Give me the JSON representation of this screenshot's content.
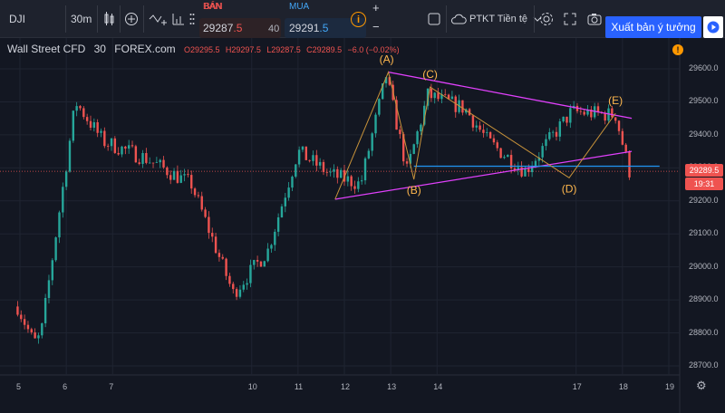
{
  "toolbar": {
    "symbol": "DJI",
    "interval": "30m",
    "sell_label": "BÁN",
    "sell_price_main": "29287",
    "sell_price_tail": ".5",
    "spread": "40",
    "buy_label": "MUA",
    "buy_price_main": "29291",
    "buy_price_tail": ".5",
    "plus": "+",
    "minus": "−",
    "info": "i",
    "layout_name": "PTKT Tiền tệ",
    "publish_label": "Xuất bản ý tưởng",
    "icons": [
      "candles-icon",
      "compare-icon",
      "indicators-icon",
      "templates-icon",
      "info-icon",
      "rectangle-icon",
      "cloud-icon",
      "chevron-down-icon",
      "gear-icon",
      "fullscreen-icon",
      "camera-icon",
      "play-icon"
    ]
  },
  "legend": {
    "title": "Wall Street CFD",
    "interval": "30",
    "source": "FOREX.com",
    "open": "O29295.5",
    "high": "H29297.5",
    "low": "L29287.5",
    "close": "C29289.5",
    "change": "−6.0 (−0.02%)"
  },
  "price_axis": [
    "29600.0",
    "29500.0",
    "29400.0",
    "29300.0",
    "29200.0",
    "29100.0",
    "29000.0",
    "28900.0",
    "28800.0",
    "28700.0"
  ],
  "time_axis": [
    "5",
    "6",
    "7",
    "10",
    "11",
    "12",
    "13",
    "14",
    "17",
    "18",
    "19"
  ],
  "current_price": "29289.5",
  "countdown": "19:31",
  "annotations": [
    "(A)",
    "(B)",
    "(C)",
    "(D)",
    "(E)"
  ],
  "colors": {
    "up": "#26a69a",
    "down": "#ef5350",
    "triangle": "#e040fb",
    "wave": "#c7923a",
    "label": "#ffb74d",
    "hline": "#2196f3"
  },
  "chart_data": {
    "type": "candlestick",
    "title": "Wall Street CFD, 30, FOREX.com",
    "ylim": [
      28660,
      29680
    ],
    "path_days": [
      4.95,
      5.3,
      5.45,
      6.2,
      6.8,
      7.7,
      8.7,
      9.6,
      10.35,
      11.0,
      11.7,
      12.35,
      12.9,
      13.35,
      13.8,
      14.6,
      15.1,
      15.9,
      16.9,
      17.85,
      18.15
    ],
    "path_prices": [
      28880,
      28770,
      28790,
      29500,
      29380,
      29330,
      29250,
      28920,
      29050,
      29350,
      29280,
      29250,
      29580,
      29290,
      29520,
      29480,
      29380,
      29290,
      29470,
      29460,
      29290
    ],
    "patterns": {
      "triangle_upper": [
        [
          12.95,
          29590
        ],
        [
          18.2,
          29450
        ]
      ],
      "triangle_lower": [
        [
          11.8,
          29205
        ],
        [
          18.2,
          29350
        ]
      ],
      "horizontal_line": [
        [
          13.5,
          29305
        ],
        [
          18.8,
          29305
        ]
      ],
      "waves": [
        [
          11.8,
          29205
        ],
        [
          12.95,
          29590
        ],
        [
          13.5,
          29265
        ],
        [
          13.85,
          29545
        ],
        [
          16.85,
          29270
        ],
        [
          17.85,
          29465
        ]
      ],
      "labels": [
        [
          "(A)",
          12.95,
          29590
        ],
        [
          "(B)",
          13.5,
          29265
        ],
        [
          "(C)",
          13.85,
          29545
        ],
        [
          "(D)",
          16.85,
          29270
        ],
        [
          "(E)",
          17.85,
          29465
        ]
      ]
    }
  }
}
